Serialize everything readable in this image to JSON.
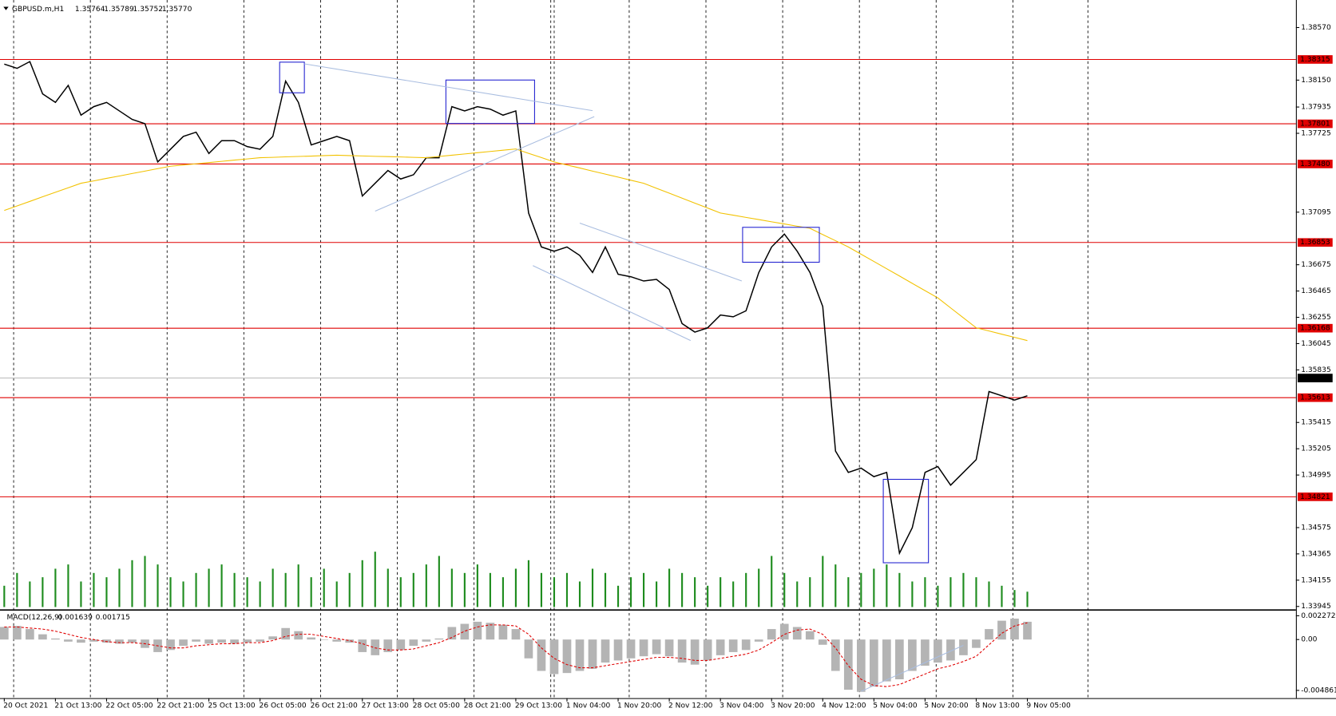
{
  "chart_data": {
    "type": "line",
    "title": "GBPUSD.m,H1",
    "ohlc": [
      "1.35764",
      "1.35789",
      "1.35752",
      "1.35770"
    ],
    "categories": [
      "20 Oct 2021",
      null,
      null,
      null,
      "21 Oct 13:00",
      null,
      null,
      null,
      "22 Oct 05:00",
      null,
      null,
      null,
      "22 Oct 21:00",
      null,
      null,
      null,
      "25 Oct 13:00",
      null,
      null,
      null,
      "26 Oct 05:00",
      null,
      null,
      null,
      "26 Oct 21:00",
      null,
      null,
      null,
      "27 Oct 13:00",
      null,
      null,
      null,
      "28 Oct 05:00",
      null,
      null,
      null,
      "28 Oct 21:00",
      null,
      null,
      null,
      "29 Oct 13:00",
      null,
      null,
      null,
      "1 Nov 04:00",
      null,
      null,
      null,
      "1 Nov 20:00",
      null,
      null,
      null,
      "2 Nov 12:00",
      null,
      null,
      null,
      "3 Nov 04:00",
      null,
      null,
      null,
      "3 Nov 20:00",
      null,
      null,
      null,
      "4 Nov 12:00",
      null,
      null,
      null,
      "5 Nov 04:00",
      null,
      null,
      null,
      "5 Nov 20:00",
      null,
      null,
      null,
      "8 Nov 13:00",
      null,
      null,
      null,
      "9 Nov 05:00"
    ],
    "series": [
      {
        "color": "#000000",
        "values": [
          1.38278,
          1.38244,
          1.38298,
          1.3804,
          1.37972,
          1.38108,
          1.3787,
          1.37938,
          1.37972,
          1.37904,
          1.37836,
          1.37802,
          1.37496,
          1.37598,
          1.377,
          1.37734,
          1.37564,
          1.37666,
          1.37666,
          1.37619,
          1.37598,
          1.377,
          1.38142,
          1.37972,
          1.37632,
          1.37666,
          1.377,
          1.37666,
          1.37224,
          1.37326,
          1.37428,
          1.3736,
          1.37394,
          1.3753,
          1.3753,
          1.37938,
          1.37904,
          1.37938,
          1.37918,
          1.3787,
          1.37904,
          1.37088,
          1.36817,
          1.36783,
          1.36817,
          1.36749,
          1.36613,
          1.36817,
          1.36599,
          1.36579,
          1.36545,
          1.36558,
          1.36477,
          1.36205,
          1.36137,
          1.36171,
          1.36273,
          1.36259,
          1.36307,
          1.36613,
          1.36817,
          1.3692,
          1.36783,
          1.36613,
          1.36341,
          1.35186,
          1.35016,
          1.3505,
          1.34982,
          1.35016,
          1.3437,
          1.34574,
          1.35016,
          1.35063,
          1.34914,
          1.35016,
          1.35118,
          1.35662,
          1.35628,
          1.35594,
          1.35628
        ]
      },
      {
        "color": "#f2c200",
        "values": [
          1.37109,
          1.37145,
          1.37181,
          1.37218,
          1.37254,
          1.3729,
          1.37326,
          1.37345,
          1.37365,
          1.37384,
          1.37404,
          1.37423,
          1.37443,
          1.37462,
          1.37472,
          1.37481,
          1.37491,
          1.37501,
          1.37511,
          1.3752,
          1.3753,
          1.37533,
          1.37537,
          1.3754,
          1.37543,
          1.37547,
          1.3755,
          1.37547,
          1.37544,
          1.37541,
          1.37539,
          1.37536,
          1.37533,
          1.3753,
          1.3754,
          1.3755,
          1.3756,
          1.3757,
          1.3758,
          1.3759,
          1.376,
          1.37565,
          1.37531,
          1.37496,
          1.37472,
          1.37448,
          1.37423,
          1.37399,
          1.37375,
          1.3735,
          1.37326,
          1.37286,
          1.37247,
          1.37207,
          1.37167,
          1.37128,
          1.37088,
          1.37071,
          1.37053,
          1.37036,
          1.37018,
          1.37001,
          1.36983,
          1.36966,
          1.36916,
          1.36867,
          1.36817,
          1.36759,
          1.36701,
          1.36643,
          1.36585,
          1.36526,
          1.36468,
          1.3641,
          1.3633,
          1.36251,
          1.36171,
          1.36146,
          1.3612,
          1.36095,
          1.36069
        ]
      }
    ],
    "ylim": [
      1.3392,
      1.3879
    ],
    "yticks": [
      {
        "value": 1.3857,
        "label": "1.38570"
      },
      {
        "value": 1.3815,
        "label": "1.38150"
      },
      1.37935,
      1.37725,
      1.37095,
      1.36675,
      1.36465,
      1.36255,
      1.36045,
      1.35835,
      1.35415,
      1.35205,
      1.34995,
      1.34575,
      1.34365,
      1.34155,
      1.33945
    ],
    "levels": {
      "color": "#e00000",
      "values": [
        1.38315,
        1.37801,
        {
          "value": 1.3748,
          "label": "1.37480"
        },
        1.36853,
        1.36168,
        1.35613,
        1.34821
      ]
    },
    "last_price": {
      "value": 1.3577,
      "label": "1.35770"
    },
    "volume": {
      "color": "#1e8c1e",
      "vlim": [
        0,
        100
      ],
      "values": [
        25,
        40,
        30,
        35,
        45,
        50,
        30,
        40,
        35,
        45,
        55,
        60,
        50,
        35,
        30,
        40,
        45,
        50,
        40,
        35,
        30,
        45,
        40,
        50,
        35,
        45,
        30,
        40,
        55,
        65,
        45,
        35,
        40,
        50,
        60,
        45,
        40,
        50,
        40,
        35,
        45,
        55,
        40,
        35,
        40,
        30,
        45,
        40,
        25,
        35,
        40,
        30,
        45,
        40,
        35,
        25,
        35,
        30,
        40,
        45,
        60,
        40,
        30,
        35,
        60,
        50,
        35,
        40,
        45,
        50,
        40,
        30,
        35,
        25,
        35,
        40,
        35,
        30,
        25,
        20,
        18
      ]
    },
    "macd": {
      "title": "MACD(12,26,9)",
      "readout": [
        "0.001639",
        "0.001715"
      ],
      "ylim": [
        -0.0056,
        0.0027
      ],
      "yticks": [
        0.002272,
        {
          "value": 0,
          "label": "0.00"
        },
        -0.004861
      ],
      "histogram": {
        "color": "#b4b4b4",
        "values": [
          0.0012,
          0.0013,
          0.001,
          0.0005,
          0.0001,
          -0.0002,
          -0.0003,
          -0.0002,
          -0.0003,
          -0.0004,
          -0.0003,
          -0.0008,
          -0.0012,
          -0.001,
          -0.0006,
          -0.0002,
          -0.0004,
          -0.0003,
          -0.0004,
          -0.0003,
          -0.0002,
          0.0003,
          0.0011,
          0.0008,
          0.0002,
          0,
          -0.0002,
          -0.0003,
          -0.0012,
          -0.0015,
          -0.0012,
          -0.001,
          -0.0006,
          -0.0002,
          0.0001,
          0.0012,
          0.0015,
          0.0017,
          0.0016,
          0.0014,
          0.001,
          -0.0018,
          -0.003,
          -0.0033,
          -0.0032,
          -0.003,
          -0.0028,
          -0.0022,
          -0.002,
          -0.0018,
          -0.0016,
          -0.0014,
          -0.0016,
          -0.0022,
          -0.0024,
          -0.002,
          -0.0015,
          -0.0012,
          -0.001,
          -0.0002,
          0.001,
          0.0015,
          0.0012,
          0.0008,
          -0.0005,
          -0.003,
          -0.0048,
          -0.005,
          -0.0045,
          -0.004,
          -0.0038,
          -0.003,
          -0.0025,
          -0.0022,
          -0.002,
          -0.0015,
          -0.0008,
          0.001,
          0.0018,
          0.002,
          0.0017
        ]
      },
      "signal": {
        "color": "#e00000",
        "values": [
          0.0012,
          0.0012,
          0.0011,
          0.001,
          0.0008,
          0.0005,
          0.0002,
          0,
          -0.0002,
          -0.0003,
          -0.0003,
          -0.0004,
          -0.0006,
          -0.0008,
          -0.0008,
          -0.0006,
          -0.0005,
          -0.0004,
          -0.0004,
          -0.0003,
          -0.0003,
          -0.0001,
          0.0003,
          0.0005,
          0.0005,
          0.0003,
          0.0001,
          -0.0001,
          -0.0004,
          -0.0008,
          -0.001,
          -0.001,
          -0.0009,
          -0.0006,
          -0.0003,
          0.0002,
          0.0008,
          0.0012,
          0.0014,
          0.0014,
          0.0013,
          0.0005,
          -0.0008,
          -0.0018,
          -0.0024,
          -0.0027,
          -0.0027,
          -0.0025,
          -0.0023,
          -0.0021,
          -0.0019,
          -0.0017,
          -0.0017,
          -0.0018,
          -0.002,
          -0.002,
          -0.0018,
          -0.0016,
          -0.0014,
          -0.001,
          -0.0003,
          0.0005,
          0.0009,
          0.001,
          0.0005,
          -0.0008,
          -0.0025,
          -0.0038,
          -0.0044,
          -0.0045,
          -0.0043,
          -0.0038,
          -0.0033,
          -0.0028,
          -0.0025,
          -0.0021,
          -0.0016,
          -0.0005,
          0.0006,
          0.0013,
          0.0016
        ]
      }
    }
  }
}
